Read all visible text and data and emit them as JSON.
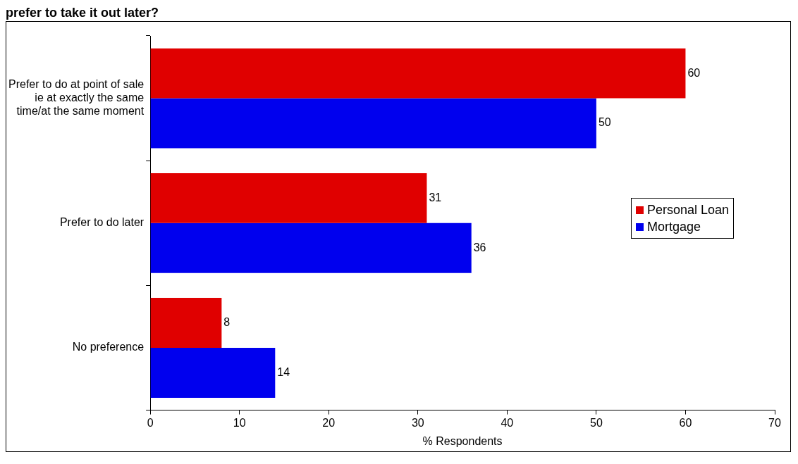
{
  "chart_data": {
    "type": "bar",
    "orientation": "horizontal",
    "title": "prefer to take it out later?",
    "categories": [
      "Prefer to do at point of sale ie at exactly the same time/at the same moment",
      "Prefer to do later",
      "No preference"
    ],
    "series": [
      {
        "name": "Personal Loan",
        "color": "#e00000",
        "values": [
          60,
          31,
          8
        ]
      },
      {
        "name": "Mortgage",
        "color": "#0000ee",
        "values": [
          50,
          36,
          14
        ]
      }
    ],
    "xlim": [
      0,
      70
    ],
    "xticks": [
      0,
      10,
      20,
      30,
      40,
      50,
      60,
      70
    ],
    "xlabel": "% Respondents",
    "grid": false,
    "legend": "right",
    "data_labels": true
  }
}
